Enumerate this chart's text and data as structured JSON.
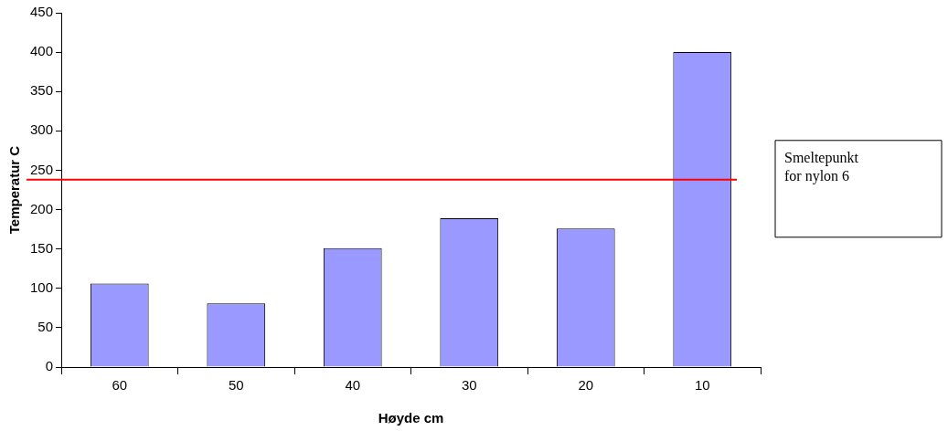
{
  "chart_data": {
    "type": "bar",
    "xlabel": "Høyde cm",
    "ylabel": "Temperatur C",
    "categories": [
      "60",
      "50",
      "40",
      "30",
      "20",
      "10"
    ],
    "values": [
      106,
      81,
      151,
      189,
      176,
      400
    ],
    "color": "#9999ff",
    "ylim": [
      0,
      450
    ],
    "yticks": [
      0,
      50,
      100,
      150,
      200,
      250,
      300,
      350,
      400,
      450
    ],
    "grid": false,
    "legend": false,
    "annotations": [
      "Smeltepunkt for nylon 6"
    ],
    "ref_lines": [
      {
        "axis": "y",
        "value": 238,
        "color": "#ff0000"
      }
    ]
  }
}
